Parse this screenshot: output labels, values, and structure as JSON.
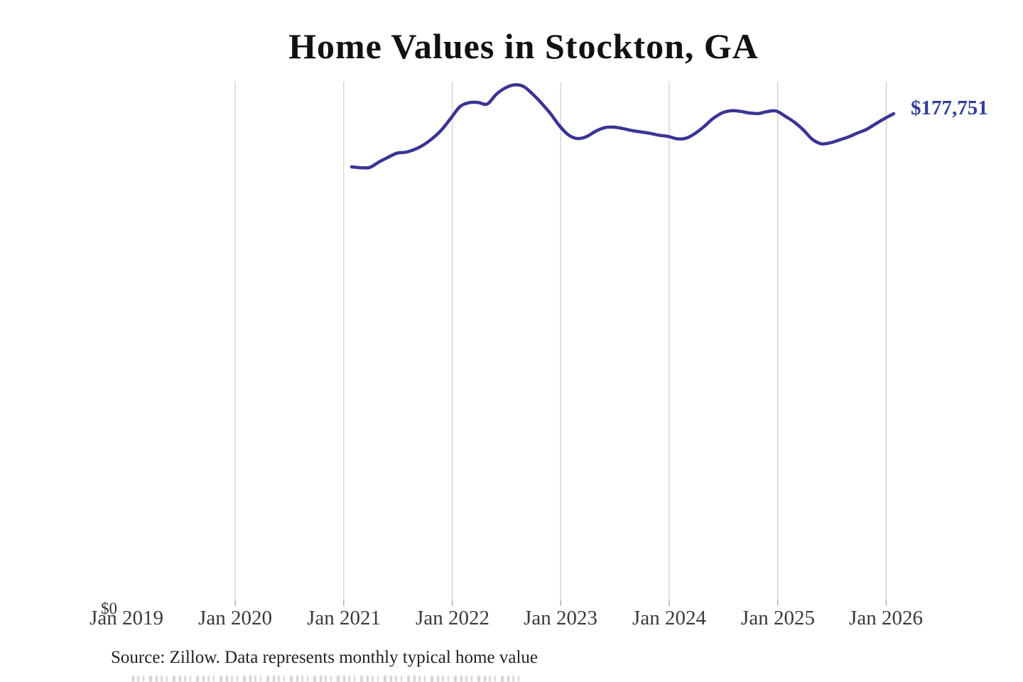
{
  "page": {
    "title": "Home Values in Stockton, GA",
    "latest_value_label": "$177,751",
    "y_axis_zero_label": "$0",
    "source_note": "Source: Zillow. Data represents monthly typical home value"
  },
  "colors": {
    "line": "#3a3493",
    "value_label": "#333c9b",
    "gridline": "#cccccc",
    "tick": "#aaaaaa",
    "title_text": "#111111",
    "axis_text": "#3a3a3a",
    "source_text": "#232323"
  },
  "chart_data": {
    "type": "line",
    "title": "Home Values in Stockton, GA",
    "series_name": "Monthly typical home value (USD)",
    "xlabel": "",
    "ylabel": "",
    "ylim": [
      0,
      190000
    ],
    "grid": "vertical-only",
    "legend": "none",
    "x_tick_labels": [
      "Jan 2019",
      "Jan 2020",
      "Jan 2021",
      "Jan 2022",
      "Jan 2023",
      "Jan 2024",
      "Jan 2025",
      "Jan 2026"
    ],
    "y_tick_labels": [
      "$0"
    ],
    "last_value": 177751,
    "last_value_label": "$177,751",
    "x": [
      "2021-02",
      "2021-03",
      "2021-04",
      "2021-05",
      "2021-06",
      "2021-07",
      "2021-08",
      "2021-09",
      "2021-10",
      "2021-11",
      "2021-12",
      "2022-01",
      "2022-02",
      "2022-03",
      "2022-04",
      "2022-05",
      "2022-06",
      "2022-07",
      "2022-08",
      "2022-09",
      "2022-10",
      "2022-11",
      "2022-12",
      "2023-01",
      "2023-02",
      "2023-03",
      "2023-04",
      "2023-05",
      "2023-06",
      "2023-07",
      "2023-08",
      "2023-09",
      "2023-10",
      "2023-11",
      "2023-12",
      "2024-01",
      "2024-02",
      "2024-03",
      "2024-04",
      "2024-05",
      "2024-06",
      "2024-07",
      "2024-08",
      "2024-09",
      "2024-10",
      "2024-11",
      "2024-12",
      "2025-01",
      "2025-02",
      "2025-03",
      "2025-04",
      "2025-05",
      "2025-06",
      "2025-07",
      "2025-08",
      "2025-09",
      "2025-10",
      "2025-11",
      "2025-12",
      "2026-01",
      "2026-02"
    ],
    "values": [
      158600,
      158300,
      158400,
      160300,
      162000,
      163500,
      163900,
      164900,
      166600,
      169000,
      172100,
      176200,
      180300,
      181700,
      181800,
      181200,
      184700,
      187000,
      188100,
      187600,
      184900,
      181600,
      177800,
      173400,
      170100,
      168800,
      169500,
      171400,
      172700,
      172900,
      172400,
      171700,
      171200,
      170700,
      170000,
      169600,
      168700,
      168900,
      170600,
      173100,
      176000,
      178000,
      178800,
      178600,
      178000,
      177800,
      178500,
      178700,
      176800,
      174700,
      171900,
      168500,
      166900,
      167300,
      168300,
      169400,
      170800,
      172100,
      174100,
      176000,
      177751
    ],
    "annotations": [
      {
        "text": "$177,751",
        "attached_to": "last-point"
      }
    ]
  }
}
